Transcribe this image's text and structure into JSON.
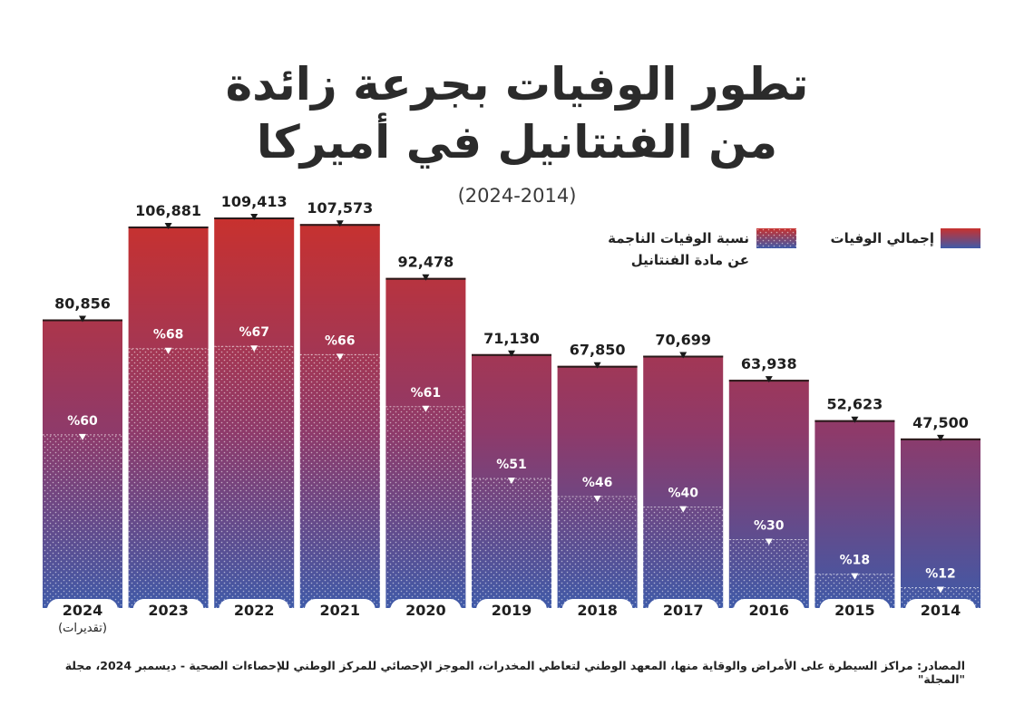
{
  "title_line1": "تطور الوفيات بجرعة زائدة",
  "title_line2": "من الفنتانيل في أميركا",
  "subtitle": "(2024-2014)",
  "legend": {
    "total": "إجمالي الوفيات",
    "fentanyl_line1": "نسبة الوفيات الناجمة",
    "fentanyl_line2": "عن مادة الفنتانيل"
  },
  "sources": "المصادر: مراكز السيطرة على الأمراض والوقاية منها، المعهد الوطني لتعاطي المخدرات، الموجز الإحصائي للمركز الوطني للإحصاءات الصحية - ديسمبر 2024، مجلة \"المجلة\"",
  "colors": {
    "top": "#c8312e",
    "bottom": "#3f5aa8"
  },
  "chart_data": {
    "type": "bar",
    "categories": [
      "2024",
      "2023",
      "2022",
      "2021",
      "2020",
      "2019",
      "2018",
      "2017",
      "2016",
      "2015",
      "2014"
    ],
    "category_notes": [
      "(تقديرات)",
      "",
      "",
      "",
      "",
      "",
      "",
      "",
      "",
      "",
      ""
    ],
    "series": [
      {
        "name": "إجمالي الوفيات",
        "values": [
          80856,
          106881,
          109413,
          107573,
          92478,
          71130,
          67850,
          70699,
          63938,
          52623,
          47500
        ],
        "labels": [
          "80,856",
          "106,881",
          "109,413",
          "107,573",
          "92,478",
          "71,130",
          "67,850",
          "70,699",
          "63,938",
          "52,623",
          "47,500"
        ]
      },
      {
        "name": "نسبة الوفيات الناجمة عن مادة الفنتانيل",
        "values": [
          60,
          68,
          67,
          66,
          61,
          51,
          46,
          40,
          30,
          18,
          12
        ],
        "labels": [
          "%60",
          "%68",
          "%67",
          "%66",
          "%61",
          "%51",
          "%46",
          "%40",
          "%30",
          "%18",
          "%12"
        ]
      }
    ],
    "ylim": [
      0,
      115000
    ],
    "x_direction": "right-to-left"
  }
}
